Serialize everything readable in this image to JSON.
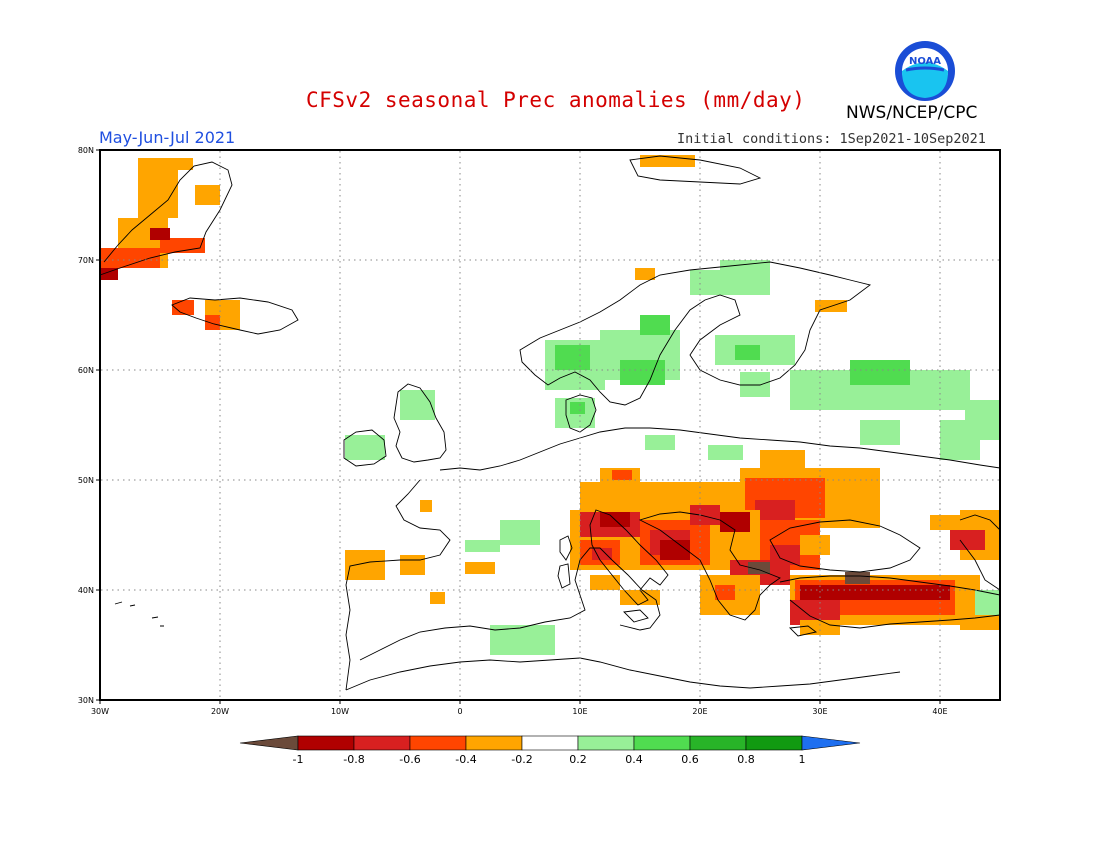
{
  "header": {
    "title": "CFSv2 seasonal Prec anomalies (mm/day)",
    "period": "May-Jun-Jul 2021",
    "initial_conditions": "Initial conditions: 1Sep2021-10Sep2021",
    "agency": "NWS/NCEP/CPC",
    "logo_text": "NOAA"
  },
  "axes": {
    "lat_labels": [
      "80N",
      "70N",
      "60N",
      "50N",
      "40N",
      "30N"
    ],
    "lon_labels": [
      "30W",
      "20W",
      "10W",
      "0",
      "10E",
      "20E",
      "30E",
      "40E"
    ]
  },
  "colorbar": {
    "labels": [
      "-1",
      "-0.8",
      "-0.6",
      "-0.4",
      "-0.2",
      "0.2",
      "0.4",
      "0.6",
      "0.8",
      "1"
    ],
    "colors": [
      "#6b4a3a",
      "#b00000",
      "#d82020",
      "#ff4500",
      "#ffa500",
      "#ffffff",
      "#98f098",
      "#50dc50",
      "#28b428",
      "#119a11",
      "#1e6ff0"
    ]
  },
  "colors": {
    "dark_red": "#b00000",
    "red": "#d82020",
    "orange_red": "#ff4500",
    "orange": "#ffa500",
    "light_green": "#98f098",
    "green": "#50dc50",
    "dark_green": "#28b428",
    "brown": "#6b4a3a"
  }
}
